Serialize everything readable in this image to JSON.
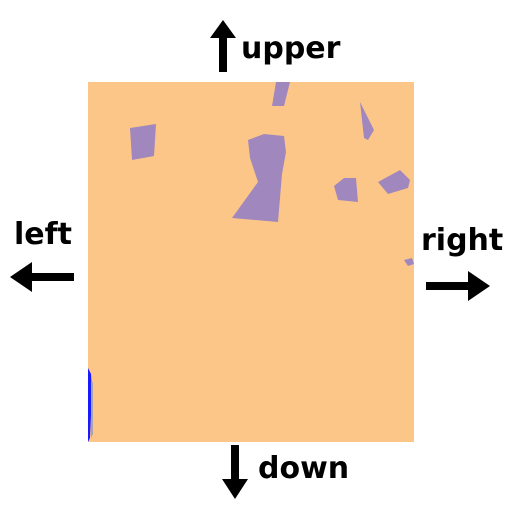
{
  "directions": {
    "upper": "upper",
    "down": "down",
    "left": "left",
    "right": "right"
  },
  "icons": {
    "up": "arrow-up-icon",
    "down": "arrow-down-icon",
    "left": "arrow-left-icon",
    "right": "arrow-right-icon"
  },
  "colors": {
    "land": "#fdc689",
    "buildings": "#a087bd",
    "edge": "#1a1aff",
    "arrows": "#000000"
  }
}
